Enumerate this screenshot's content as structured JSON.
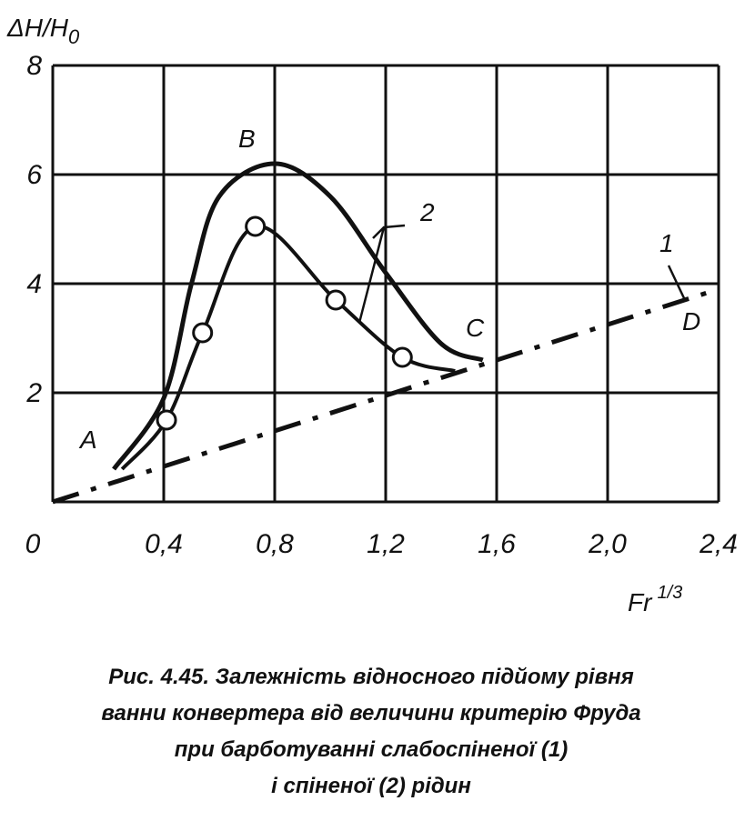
{
  "chart_data": {
    "type": "line",
    "y_label": "ΔH/H",
    "y_label_sub": "0",
    "x_label": "Fr",
    "x_label_sup": "1/3",
    "xlim": [
      0,
      2.4
    ],
    "ylim": [
      0,
      8
    ],
    "xticks": [
      0,
      {
        "value": 0.4,
        "label": "0,4"
      },
      {
        "value": 0.8,
        "label": "0,8"
      },
      {
        "value": 1.2,
        "label": "1,2"
      },
      {
        "value": 1.6,
        "label": "1,6"
      },
      {
        "value": 2.0,
        "label": "2,0"
      },
      {
        "value": 2.4,
        "label": "2,4"
      }
    ],
    "yticks": [
      2,
      4,
      6,
      8
    ],
    "grid": true,
    "series": [
      {
        "color": "#111111",
        "style": "dashed",
        "x": [
          0,
          2.4
        ],
        "values": [
          0,
          3.9
        ]
      },
      {
        "color": "#111111",
        "style": "solid",
        "x": [
          0.22,
          0.4,
          0.5,
          0.6,
          0.8,
          1.0,
          1.2,
          1.4,
          1.55
        ],
        "values": [
          0.6,
          1.9,
          4.0,
          5.6,
          6.2,
          5.6,
          4.2,
          2.9,
          2.6
        ]
      },
      {
        "color": "#111111",
        "style": "markers",
        "x": [
          0.25,
          0.41,
          0.54,
          0.73,
          1.02,
          1.26,
          1.45
        ],
        "values": [
          0.6,
          1.5,
          3.1,
          5.05,
          3.7,
          2.65,
          2.4
        ]
      }
    ],
    "annotations": [
      "A",
      "B",
      "C",
      "D",
      "1",
      "2"
    ],
    "caption": [
      "Рис. 4.45. Залежність відносного підйому рівня",
      "ванни конвертера від величини критерію Фруда",
      "при барботуванні слабоспіненої (1)",
      "і спіненої (2) рідин"
    ]
  }
}
